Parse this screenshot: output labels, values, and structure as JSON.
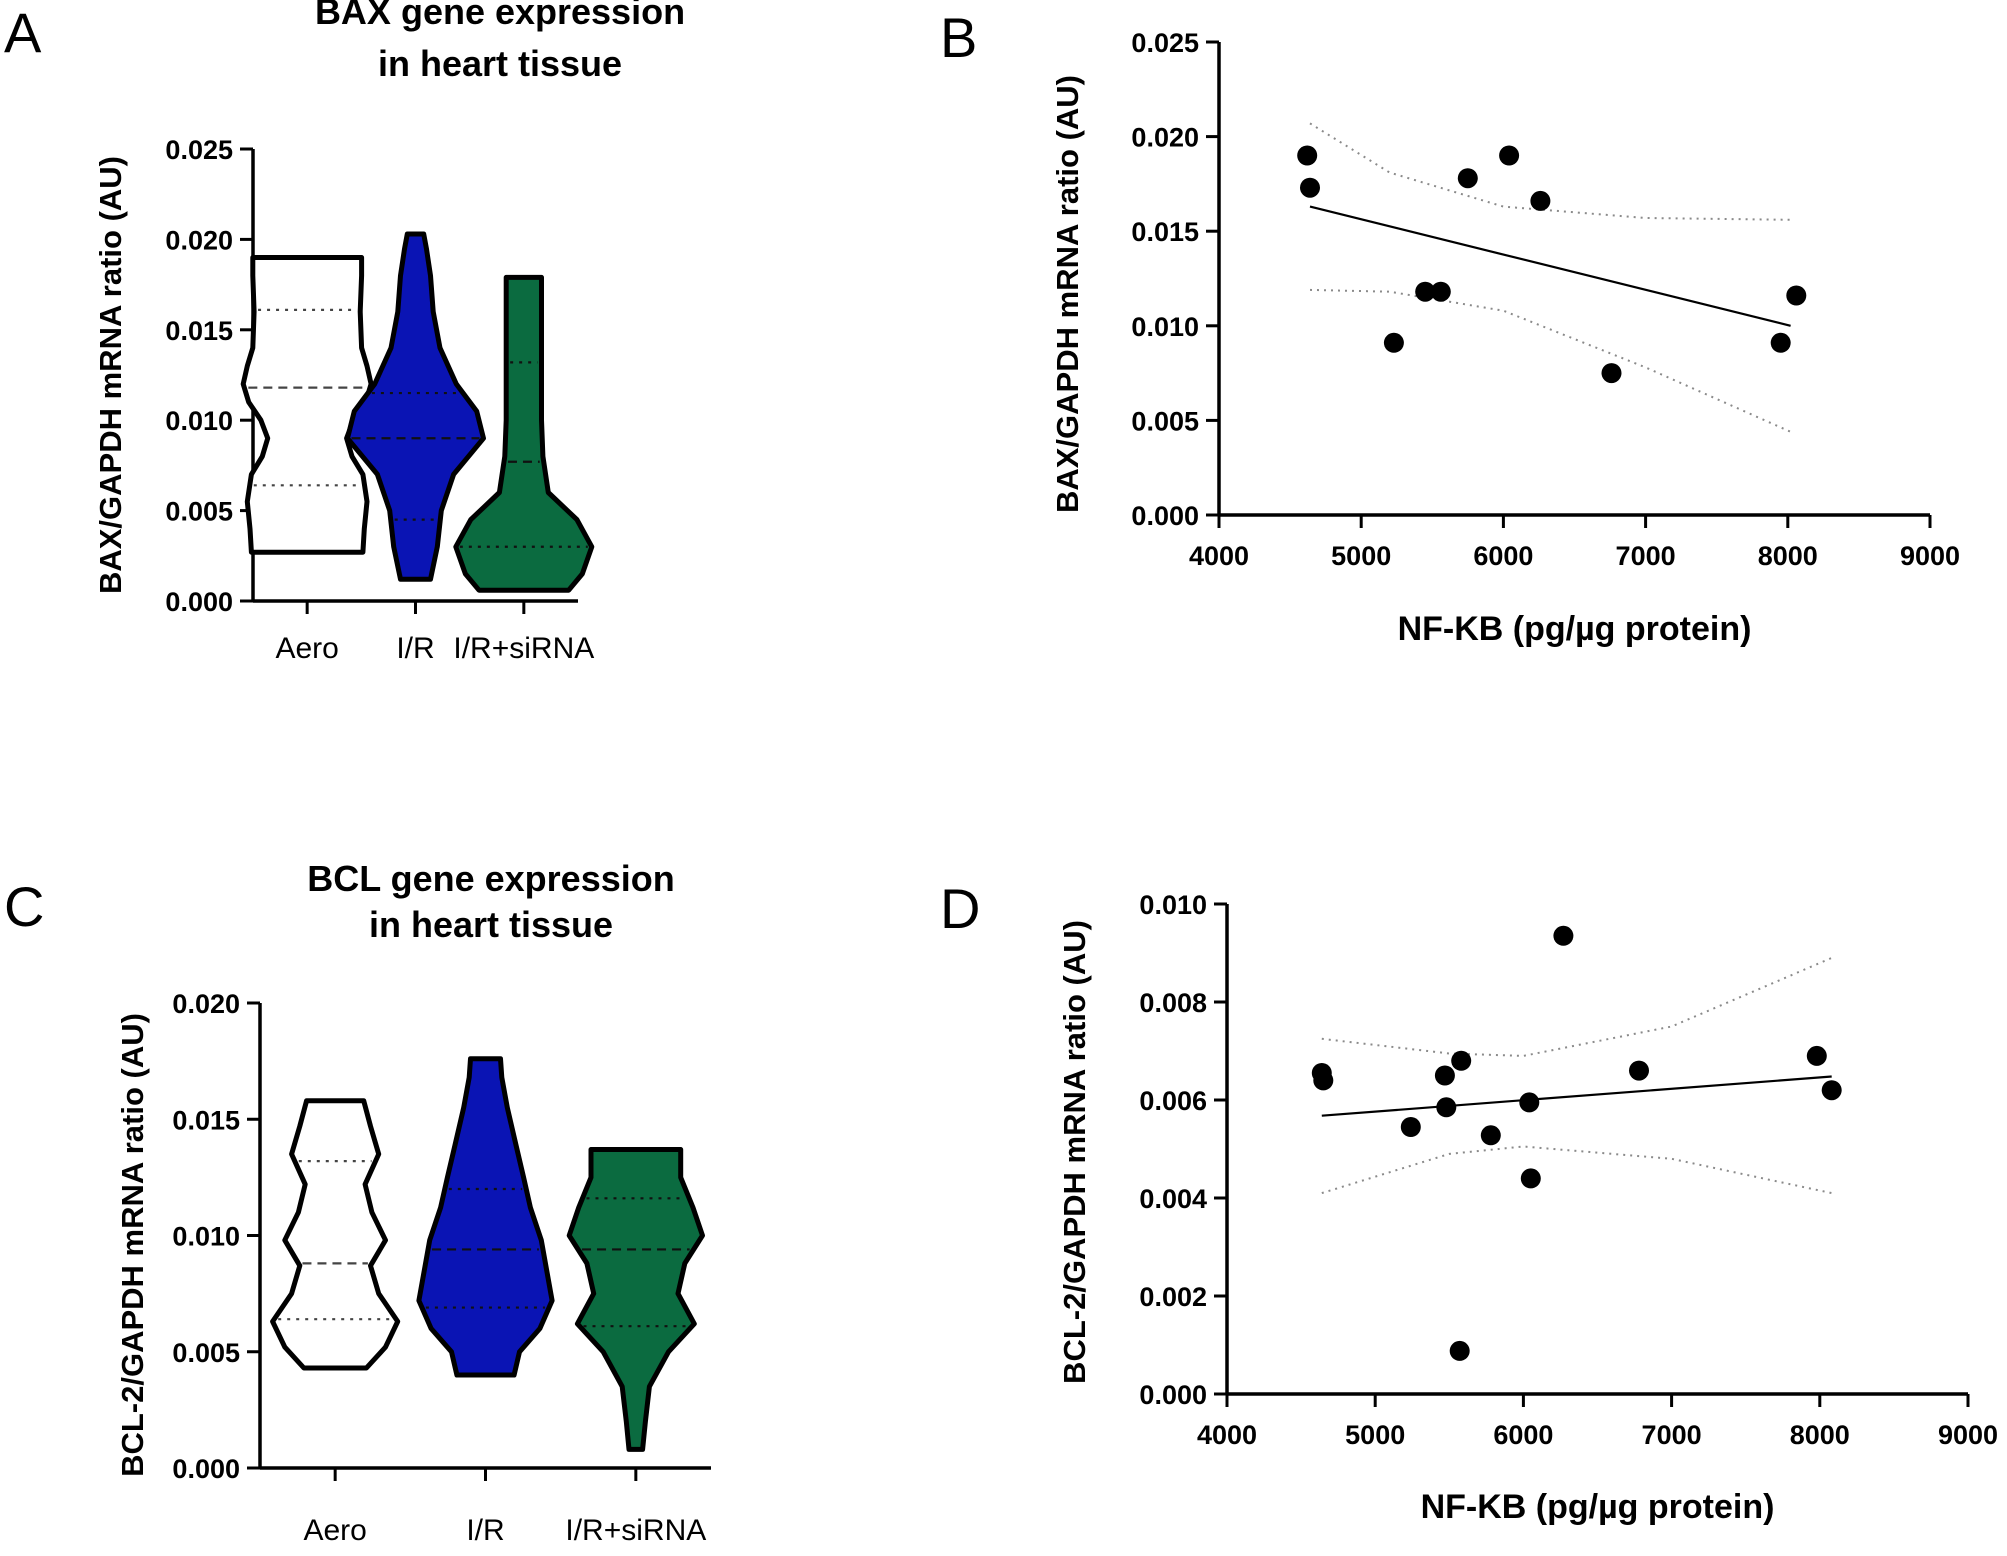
{
  "colors": {
    "aero": "#ffffff",
    "ir": "#0a14b4",
    "ir_sirna": "#0b6b40",
    "line": "#000000",
    "ci": "#8a8a8a"
  },
  "chart_data": [
    {
      "panel": "A",
      "type": "violin",
      "title": [
        "BAX gene expression",
        "in heart tissue"
      ],
      "ylabel": "BAX/GAPDH mRNA ratio (AU)",
      "xlabel": "",
      "ylim": [
        0,
        0.025
      ],
      "yticks": [
        "0.000",
        "0.005",
        "0.010",
        "0.015",
        "0.020",
        "0.025"
      ],
      "categories": [
        "Aero",
        "I/R",
        "I/R+siRNA"
      ],
      "series": [
        {
          "name": "Aero",
          "color": "aero",
          "min": 0.0027,
          "max": 0.019,
          "q1": 0.0064,
          "median": 0.0118,
          "q3": 0.0161,
          "profile": [
            [
              0.0027,
              0.82
            ],
            [
              0.004,
              0.84
            ],
            [
              0.0055,
              0.88
            ],
            [
              0.007,
              0.82
            ],
            [
              0.008,
              0.66
            ],
            [
              0.009,
              0.58
            ],
            [
              0.01,
              0.68
            ],
            [
              0.011,
              0.86
            ],
            [
              0.012,
              0.94
            ],
            [
              0.013,
              0.88
            ],
            [
              0.014,
              0.8
            ],
            [
              0.016,
              0.78
            ],
            [
              0.018,
              0.8
            ],
            [
              0.019,
              0.8
            ]
          ]
        },
        {
          "name": "I/R",
          "color": "ir",
          "min": 0.0012,
          "max": 0.0203,
          "q1": 0.0045,
          "median": 0.009,
          "q3": 0.0115,
          "profile": [
            [
              0.0012,
              0.22
            ],
            [
              0.003,
              0.32
            ],
            [
              0.005,
              0.38
            ],
            [
              0.007,
              0.56
            ],
            [
              0.009,
              1.0
            ],
            [
              0.0105,
              0.9
            ],
            [
              0.012,
              0.6
            ],
            [
              0.014,
              0.36
            ],
            [
              0.016,
              0.26
            ],
            [
              0.018,
              0.22
            ],
            [
              0.0195,
              0.16
            ],
            [
              0.0203,
              0.12
            ]
          ]
        },
        {
          "name": "I/R+siRNA",
          "color": "ir_sirna",
          "min": 0.0006,
          "max": 0.0179,
          "q1": 0.003,
          "median": 0.0077,
          "q3": 0.0132,
          "profile": [
            [
              0.0006,
              0.66
            ],
            [
              0.0015,
              0.86
            ],
            [
              0.003,
              1.0
            ],
            [
              0.0045,
              0.78
            ],
            [
              0.006,
              0.36
            ],
            [
              0.008,
              0.28
            ],
            [
              0.01,
              0.26
            ],
            [
              0.013,
              0.26
            ],
            [
              0.016,
              0.26
            ],
            [
              0.0179,
              0.26
            ]
          ]
        }
      ]
    },
    {
      "panel": "B",
      "type": "scatter",
      "ylabel": "BAX/GAPDH mRNA ratio (AU)",
      "xlabel": "NF-KB (pg/µg protein)",
      "xlim": [
        4000,
        9000
      ],
      "ylim": [
        0,
        0.025
      ],
      "xticks": [
        "4000",
        "5000",
        "6000",
        "7000",
        "8000",
        "9000"
      ],
      "yticks": [
        "0.000",
        "0.005",
        "0.010",
        "0.015",
        "0.020",
        "0.025"
      ],
      "points": [
        [
          4620,
          0.019
        ],
        [
          4640,
          0.0173
        ],
        [
          5230,
          0.0091
        ],
        [
          5450,
          0.0118
        ],
        [
          5560,
          0.0118
        ],
        [
          5750,
          0.0178
        ],
        [
          6040,
          0.019
        ],
        [
          6260,
          0.0166
        ],
        [
          6760,
          0.0075
        ],
        [
          7950,
          0.0091
        ],
        [
          8060,
          0.0116
        ]
      ],
      "fit": [
        [
          4640,
          0.0163
        ],
        [
          8020,
          0.01
        ]
      ],
      "ci_upper": [
        [
          4640,
          0.0207
        ],
        [
          5200,
          0.0181
        ],
        [
          6000,
          0.0163
        ],
        [
          7000,
          0.0157
        ],
        [
          8020,
          0.0156
        ]
      ],
      "ci_lower": [
        [
          4640,
          0.0119
        ],
        [
          5200,
          0.0118
        ],
        [
          6000,
          0.0108
        ],
        [
          7000,
          0.0078
        ],
        [
          8020,
          0.0044
        ]
      ]
    },
    {
      "panel": "C",
      "type": "violin",
      "title": [
        "BCL gene expression",
        "in heart tissue"
      ],
      "ylabel": "BCL-2/GAPDH mRNA ratio (AU)",
      "xlabel": "",
      "ylim": [
        0,
        0.02
      ],
      "yticks": [
        "0.000",
        "0.005",
        "0.010",
        "0.015",
        "0.020"
      ],
      "categories": [
        "Aero",
        "I/R",
        "I/R+siRNA"
      ],
      "series": [
        {
          "name": "Aero",
          "color": "aero",
          "min": 0.0043,
          "max": 0.0158,
          "q1": 0.0064,
          "median": 0.0088,
          "q3": 0.0132,
          "profile": [
            [
              0.0043,
              0.46
            ],
            [
              0.0052,
              0.74
            ],
            [
              0.0063,
              0.92
            ],
            [
              0.0075,
              0.64
            ],
            [
              0.0087,
              0.52
            ],
            [
              0.0098,
              0.74
            ],
            [
              0.011,
              0.54
            ],
            [
              0.0122,
              0.44
            ],
            [
              0.0135,
              0.64
            ],
            [
              0.0147,
              0.52
            ],
            [
              0.0158,
              0.42
            ]
          ]
        },
        {
          "name": "I/R",
          "color": "ir",
          "min": 0.004,
          "max": 0.0176,
          "q1": 0.0069,
          "median": 0.0094,
          "q3": 0.012,
          "profile": [
            [
              0.004,
              0.42
            ],
            [
              0.005,
              0.5
            ],
            [
              0.006,
              0.8
            ],
            [
              0.0072,
              0.98
            ],
            [
              0.0085,
              0.9
            ],
            [
              0.0098,
              0.82
            ],
            [
              0.0112,
              0.66
            ],
            [
              0.0125,
              0.56
            ],
            [
              0.014,
              0.44
            ],
            [
              0.0155,
              0.32
            ],
            [
              0.0168,
              0.24
            ],
            [
              0.0176,
              0.22
            ]
          ]
        },
        {
          "name": "I/R+siRNA",
          "color": "ir_sirna",
          "min": 0.0008,
          "max": 0.0137,
          "q1": 0.0061,
          "median": 0.0094,
          "q3": 0.0116,
          "profile": [
            [
              0.0008,
              0.1
            ],
            [
              0.002,
              0.14
            ],
            [
              0.0035,
              0.2
            ],
            [
              0.005,
              0.48
            ],
            [
              0.0062,
              0.86
            ],
            [
              0.0075,
              0.62
            ],
            [
              0.0088,
              0.72
            ],
            [
              0.01,
              0.98
            ],
            [
              0.0112,
              0.84
            ],
            [
              0.0125,
              0.66
            ],
            [
              0.0137,
              0.66
            ]
          ]
        }
      ]
    },
    {
      "panel": "D",
      "type": "scatter",
      "ylabel": "BCL-2/GAPDH mRNA ratio (AU)",
      "xlabel": "NF-KB (pg/µg protein)",
      "xlim": [
        4000,
        9000
      ],
      "ylim": [
        0,
        0.01
      ],
      "xticks": [
        "4000",
        "5000",
        "6000",
        "7000",
        "8000",
        "9000"
      ],
      "yticks": [
        "0.000",
        "0.002",
        "0.004",
        "0.006",
        "0.008",
        "0.010"
      ],
      "points": [
        [
          4640,
          0.00655
        ],
        [
          4650,
          0.0064
        ],
        [
          5240,
          0.00545
        ],
        [
          5470,
          0.0065
        ],
        [
          5480,
          0.00585
        ],
        [
          5570,
          0.00088
        ],
        [
          5580,
          0.0068
        ],
        [
          5780,
          0.00528
        ],
        [
          6040,
          0.00595
        ],
        [
          6050,
          0.0044
        ],
        [
          6270,
          0.00935
        ],
        [
          6780,
          0.0066
        ],
        [
          7980,
          0.0069
        ],
        [
          8080,
          0.0062
        ]
      ],
      "fit": [
        [
          4640,
          0.00568
        ],
        [
          8080,
          0.00648
        ]
      ],
      "ci_upper": [
        [
          4640,
          0.00725
        ],
        [
          5500,
          0.00695
        ],
        [
          6000,
          0.0069
        ],
        [
          7000,
          0.0075
        ],
        [
          8080,
          0.0089
        ]
      ],
      "ci_lower": [
        [
          4640,
          0.0041
        ],
        [
          5500,
          0.0049
        ],
        [
          6000,
          0.00505
        ],
        [
          7000,
          0.0048
        ],
        [
          8080,
          0.0041
        ]
      ]
    }
  ]
}
